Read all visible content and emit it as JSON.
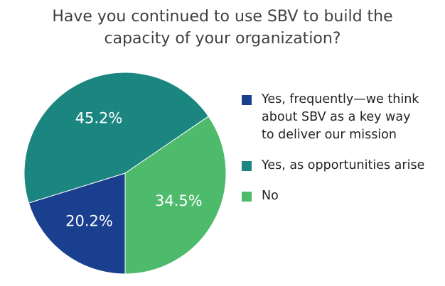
{
  "chart_data": {
    "type": "pie",
    "title": "Have you continued to use SBV to build the capacity of your organization?",
    "categories": [
      "Yes, frequently—we think about SBV as a key way to deliver our mission",
      "Yes, as opportunities arise",
      "No"
    ],
    "values": [
      20.2,
      45.2,
      34.5
    ],
    "value_labels": [
      "20.2%",
      "45.2%",
      "34.5%"
    ],
    "colors": [
      "#1a3f8f",
      "#1b8580",
      "#4dbb6b"
    ]
  }
}
